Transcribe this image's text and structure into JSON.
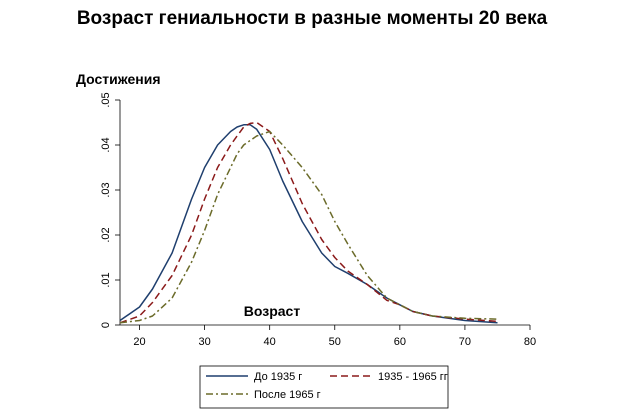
{
  "chart_data": {
    "type": "line",
    "title": "Возраст гениальности в разные моменты 20 века",
    "ylabel": "Достижения",
    "xlabel": "Возраст",
    "xlim": [
      17,
      80
    ],
    "ylim": [
      0,
      0.05
    ],
    "x_ticks": [
      "20",
      "30",
      "40",
      "50",
      "60",
      "70",
      "80"
    ],
    "y_ticks": [
      "0",
      ".01",
      ".02",
      ".03",
      ".04",
      ".05"
    ],
    "legend_position": "bottom",
    "grid": false,
    "x": [
      17,
      20,
      22,
      25,
      28,
      30,
      32,
      34,
      35,
      36,
      37,
      38,
      40,
      42,
      45,
      48,
      50,
      52,
      55,
      58,
      60,
      62,
      65,
      70,
      75
    ],
    "series": [
      {
        "name": "До 1935 г",
        "color": "#1f3f6e",
        "dash": "solid",
        "values": [
          0.001,
          0.004,
          0.008,
          0.016,
          0.028,
          0.035,
          0.04,
          0.043,
          0.044,
          0.0445,
          0.0445,
          0.0435,
          0.039,
          0.032,
          0.023,
          0.016,
          0.013,
          0.0115,
          0.009,
          0.006,
          0.0045,
          0.003,
          0.002,
          0.001,
          0.0005
        ]
      },
      {
        "name": "1935 - 1965 гг",
        "color": "#8b1a1a",
        "dash": "7,4",
        "values": [
          0.0005,
          0.002,
          0.005,
          0.011,
          0.02,
          0.028,
          0.035,
          0.04,
          0.042,
          0.044,
          0.0448,
          0.045,
          0.043,
          0.037,
          0.027,
          0.019,
          0.015,
          0.012,
          0.009,
          0.0055,
          0.0045,
          0.003,
          0.002,
          0.0013,
          0.0008
        ]
      },
      {
        "name": "После 1965 г",
        "color": "#6b6b2a",
        "dash": "7,3,2,3",
        "values": [
          0.0005,
          0.001,
          0.002,
          0.006,
          0.014,
          0.021,
          0.029,
          0.035,
          0.038,
          0.04,
          0.041,
          0.042,
          0.043,
          0.04,
          0.035,
          0.029,
          0.023,
          0.018,
          0.011,
          0.006,
          0.0045,
          0.003,
          0.002,
          0.0015,
          0.0013
        ]
      }
    ]
  }
}
